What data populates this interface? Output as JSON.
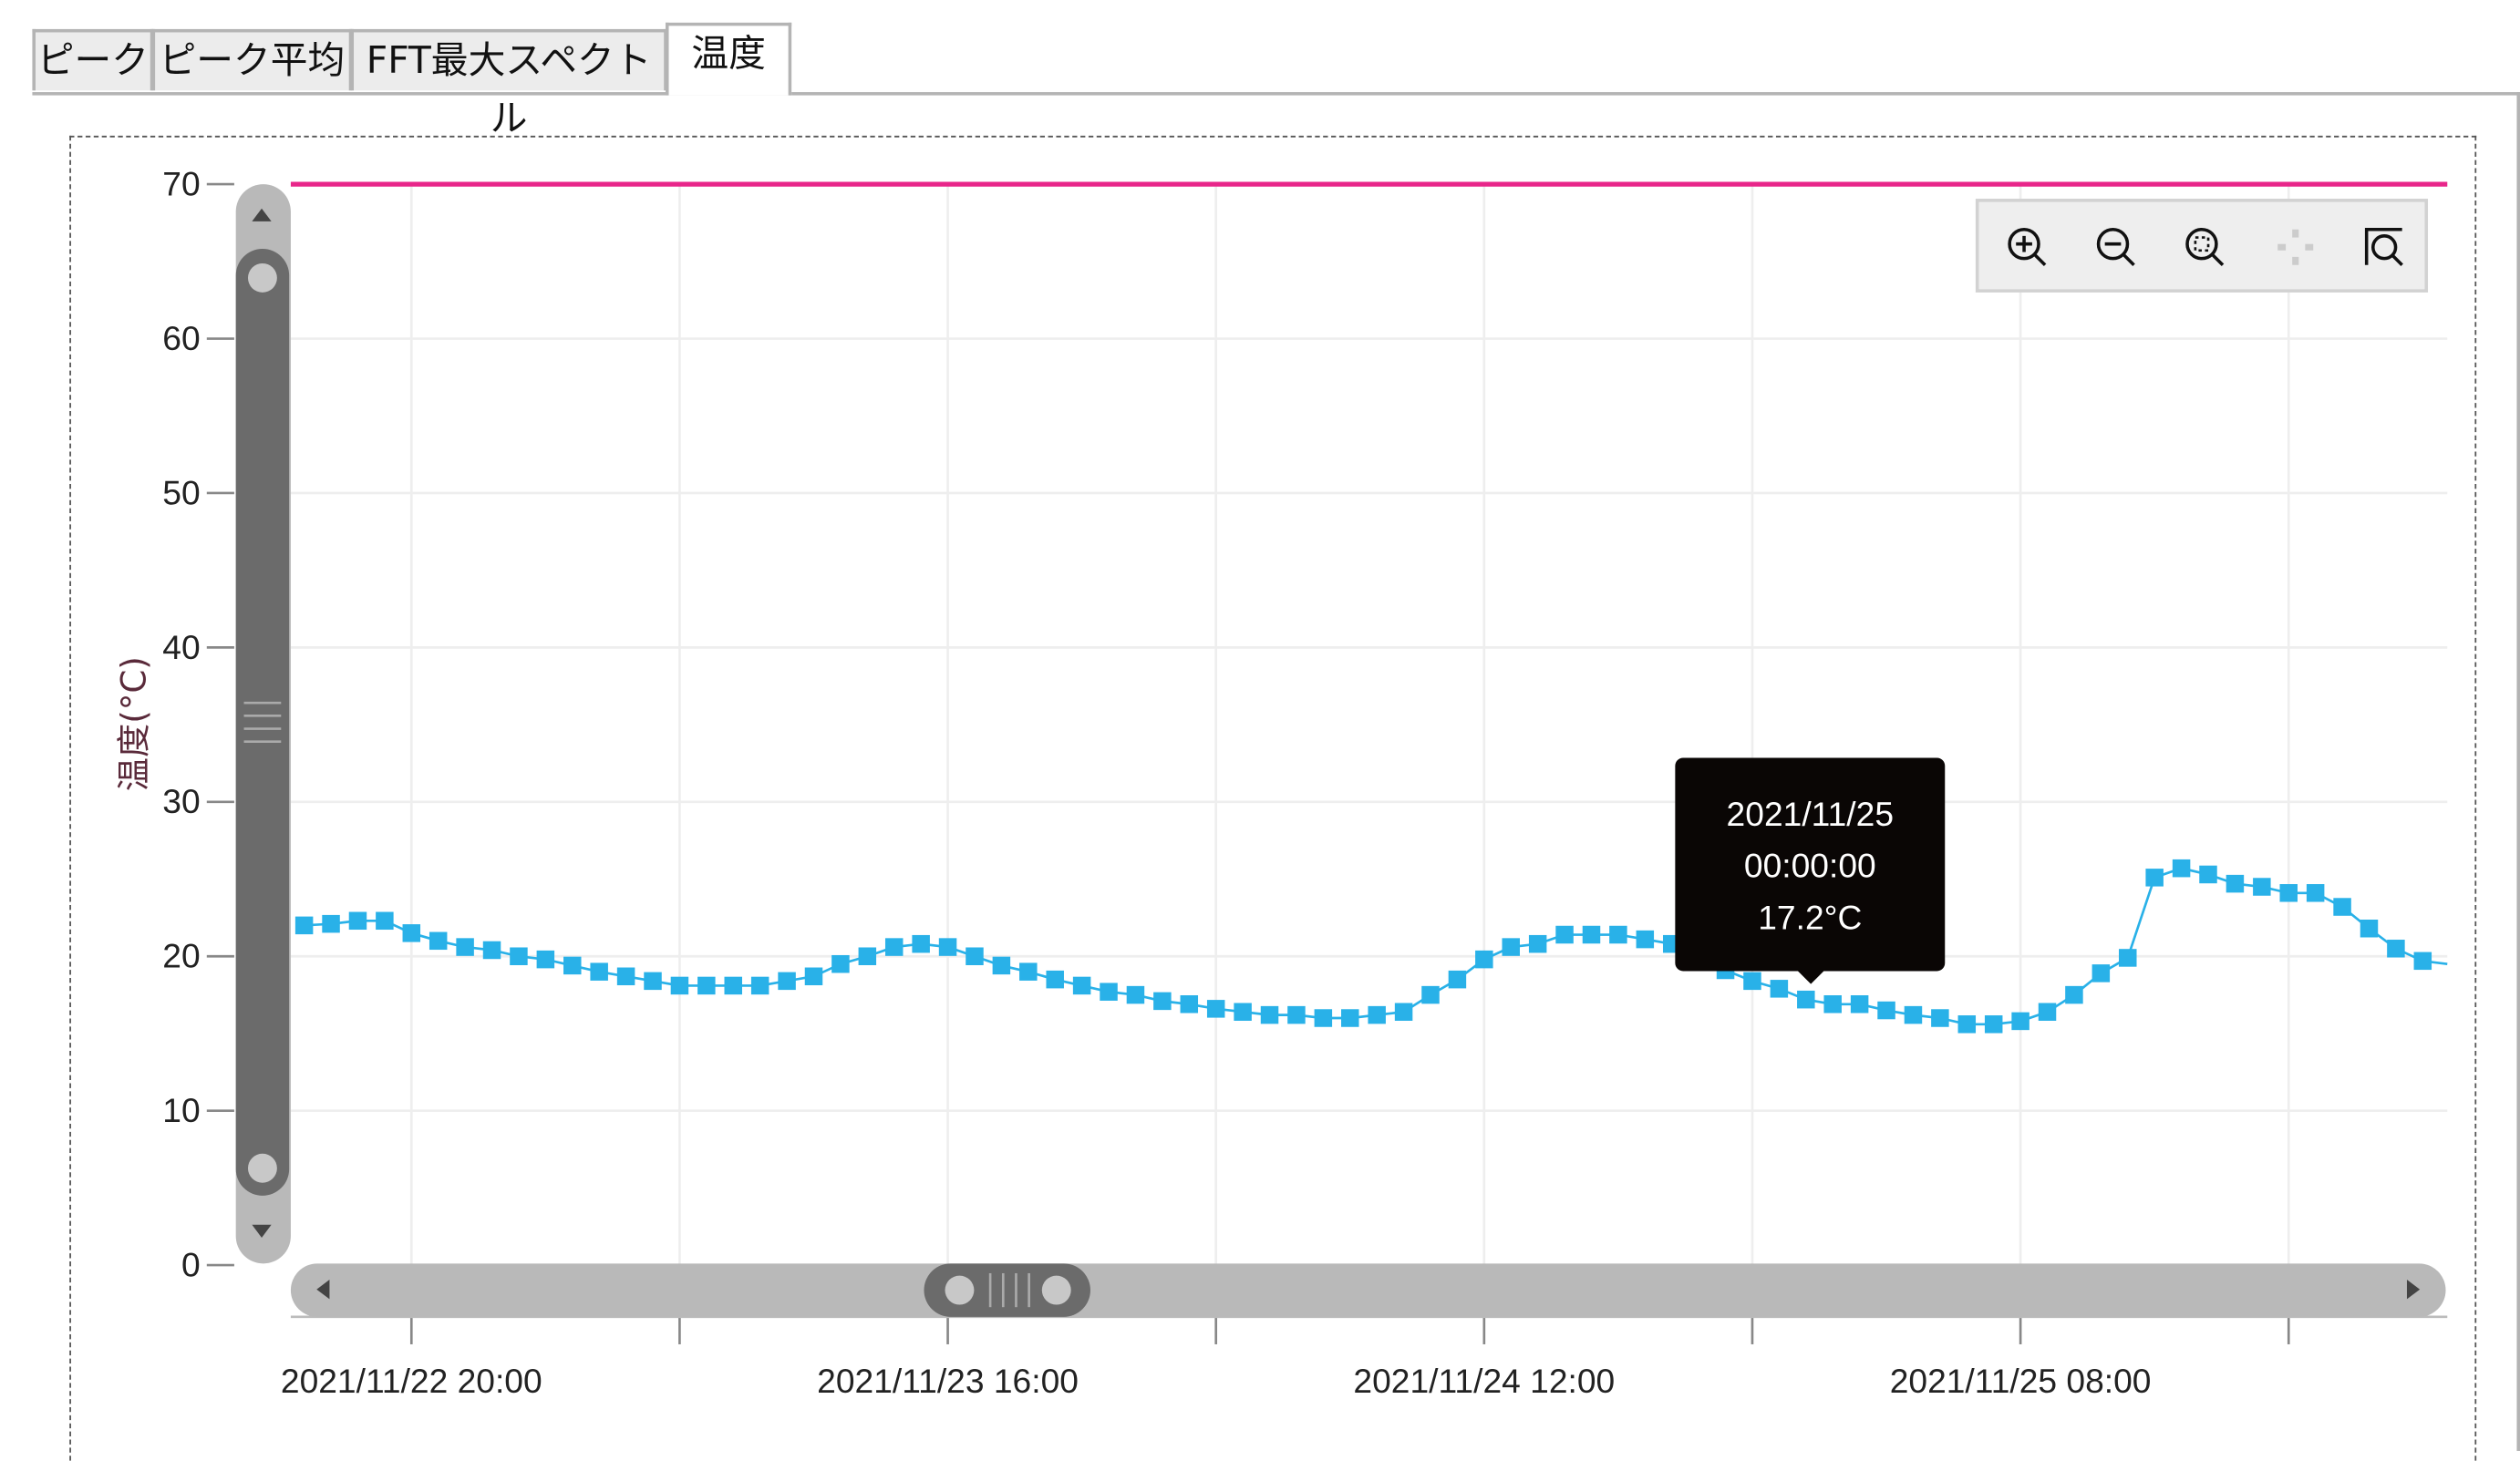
{
  "tabs": [
    {
      "label": "ピーク",
      "active": false
    },
    {
      "label": "ピーク平均",
      "active": false
    },
    {
      "label": "FFT最大スペクトル",
      "active": false
    },
    {
      "label": "温度",
      "active": true
    }
  ],
  "toolbar": {
    "icons": [
      "zoom-in-icon",
      "zoom-out-icon",
      "zoom-fit-icon",
      "pan-icon",
      "zoom-region-icon"
    ]
  },
  "tooltip": {
    "date": "2021/11/25",
    "time": "00:00:00",
    "value": "17.2°C"
  },
  "chart_data": {
    "type": "line",
    "ylabel": "温度(°C)",
    "xlabel": "",
    "ylim": [
      0,
      70
    ],
    "yticks": [
      "0",
      "10",
      "20",
      "30",
      "40",
      "50",
      "60",
      "70"
    ],
    "xlim": [
      "2021/11/22 15:30",
      "2021/11/25 23:55"
    ],
    "xticks": [
      "2021/11/22 20:00",
      "2021/11/23 06:00",
      "2021/11/23 16:00",
      "2021/11/24 02:00",
      "2021/11/24 12:00",
      "2021/11/24 22:00",
      "2021/11/25 08:00",
      "2021/11/25 18:00"
    ],
    "xtick_labels": [
      "2021/11/22 20:00",
      "",
      "2021/11/23 16:00",
      "",
      "2021/11/24 12:00",
      "",
      "2021/11/25 08:00",
      ""
    ],
    "grid": true,
    "threshold": {
      "value": 70,
      "color": "#e8268a"
    },
    "series_color": "#29b1e8",
    "marker": "square",
    "x": [
      "2021/11/22 16:00",
      "2021/11/22 17:00",
      "2021/11/22 18:00",
      "2021/11/22 19:00",
      "2021/11/22 20:00",
      "2021/11/22 21:00",
      "2021/11/22 22:00",
      "2021/11/22 23:00",
      "2021/11/23 00:00",
      "2021/11/23 01:00",
      "2021/11/23 02:00",
      "2021/11/23 03:00",
      "2021/11/23 04:00",
      "2021/11/23 05:00",
      "2021/11/23 06:00",
      "2021/11/23 07:00",
      "2021/11/23 08:00",
      "2021/11/23 09:00",
      "2021/11/23 10:00",
      "2021/11/23 11:00",
      "2021/11/23 12:00",
      "2021/11/23 13:00",
      "2021/11/23 14:00",
      "2021/11/23 15:00",
      "2021/11/23 16:00",
      "2021/11/23 17:00",
      "2021/11/23 18:00",
      "2021/11/23 19:00",
      "2021/11/23 20:00",
      "2021/11/23 21:00",
      "2021/11/23 22:00",
      "2021/11/23 23:00",
      "2021/11/24 00:00",
      "2021/11/24 01:00",
      "2021/11/24 02:00",
      "2021/11/24 03:00",
      "2021/11/24 04:00",
      "2021/11/24 05:00",
      "2021/11/24 06:00",
      "2021/11/24 07:00",
      "2021/11/24 08:00",
      "2021/11/24 09:00",
      "2021/11/24 10:00",
      "2021/11/24 11:00",
      "2021/11/24 12:00",
      "2021/11/24 13:00",
      "2021/11/24 14:00",
      "2021/11/24 15:00",
      "2021/11/24 16:00",
      "2021/11/24 17:00",
      "2021/11/24 18:00",
      "2021/11/24 19:00",
      "2021/11/24 20:00",
      "2021/11/24 21:00",
      "2021/11/24 22:00",
      "2021/11/24 23:00",
      "2021/11/25 00:00",
      "2021/11/25 01:00",
      "2021/11/25 02:00",
      "2021/11/25 03:00",
      "2021/11/25 04:00",
      "2021/11/25 05:00",
      "2021/11/25 06:00",
      "2021/11/25 07:00",
      "2021/11/25 08:00",
      "2021/11/25 09:00",
      "2021/11/25 10:00",
      "2021/11/25 11:00",
      "2021/11/25 12:00",
      "2021/11/25 13:00",
      "2021/11/25 14:00",
      "2021/11/25 15:00",
      "2021/11/25 16:00",
      "2021/11/25 17:00",
      "2021/11/25 18:00",
      "2021/11/25 19:00",
      "2021/11/25 20:00",
      "2021/11/25 21:00",
      "2021/11/25 22:00",
      "2021/11/25 23:00"
    ],
    "values": [
      22.0,
      22.1,
      22.3,
      22.3,
      21.5,
      21.0,
      20.6,
      20.4,
      20.0,
      19.8,
      19.4,
      19.0,
      18.7,
      18.4,
      18.1,
      18.1,
      18.1,
      18.1,
      18.4,
      18.7,
      19.5,
      20.0,
      20.6,
      20.8,
      20.6,
      20.0,
      19.4,
      19.0,
      18.5,
      18.1,
      17.7,
      17.5,
      17.1,
      16.9,
      16.6,
      16.4,
      16.2,
      16.2,
      16.0,
      16.0,
      16.2,
      16.4,
      17.5,
      18.5,
      19.8,
      20.6,
      20.8,
      21.4,
      21.4,
      21.4,
      21.1,
      20.8,
      20.0,
      19.1,
      18.4,
      17.9,
      17.2,
      16.9,
      16.9,
      16.5,
      16.2,
      16.0,
      15.6,
      15.6,
      15.8,
      16.4,
      17.5,
      18.9,
      19.9,
      25.1,
      25.7,
      25.3,
      24.7,
      24.5,
      24.1,
      24.1,
      23.2,
      21.8,
      20.5,
      19.7
    ]
  }
}
